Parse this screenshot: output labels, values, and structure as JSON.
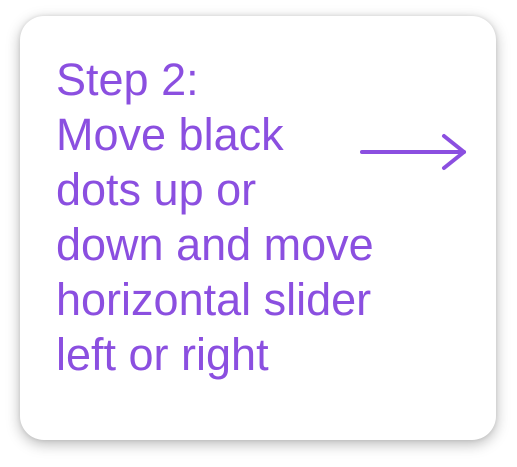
{
  "instruction": {
    "lines": [
      "Step 2:",
      "Move black",
      "dots up or",
      "down and move",
      "horizontal slider",
      "left or right"
    ]
  },
  "arrow_icon": "arrow-right-icon",
  "colors": {
    "text": "#8b4fe0",
    "arrow": "#8b4fe0",
    "card_background": "#ffffff"
  }
}
